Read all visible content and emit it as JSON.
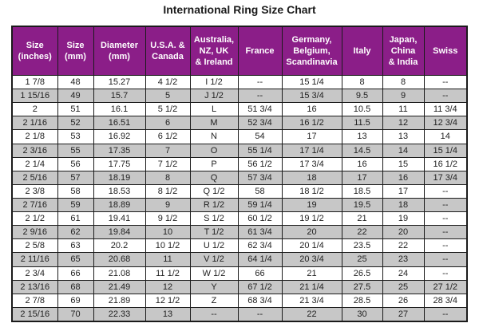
{
  "page": {
    "title": "International Ring Size Chart"
  },
  "colors": {
    "header_bg": "#8B1E88",
    "header_text": "#FFFFFF",
    "row_bg": "#FFFFFF",
    "row_alt_bg": "#C7C7C7",
    "border": "#1B1B1B",
    "cell_text": "#222222",
    "title_text": "#1A1A1A"
  },
  "chart_data": {
    "type": "table",
    "title": "International Ring Size Chart",
    "columns": [
      "Size\n(inches)",
      "Size\n(mm)",
      "Diameter\n(mm)",
      "U.S.A. &\nCanada",
      "Australia,\nNZ, UK\n& Ireland",
      "France",
      "Germany,\nBelgium,\nScandinavia",
      "Italy",
      "Japan,\nChina\n& India",
      "Swiss"
    ],
    "rows": [
      [
        "1 7/8",
        "48",
        "15.27",
        "4 1/2",
        "I 1/2",
        "--",
        "15 1/4",
        "8",
        "8",
        "--"
      ],
      [
        "1 15/16",
        "49",
        "15.7",
        "5",
        "J 1/2",
        "--",
        "15 3/4",
        "9.5",
        "9",
        "--"
      ],
      [
        "2",
        "51",
        "16.1",
        "5 1/2",
        "L",
        "51 3/4",
        "16",
        "10.5",
        "11",
        "11 3/4"
      ],
      [
        "2 1/16",
        "52",
        "16.51",
        "6",
        "M",
        "52 3/4",
        "16 1/2",
        "11.5",
        "12",
        "12 3/4"
      ],
      [
        "2 1/8",
        "53",
        "16.92",
        "6 1/2",
        "N",
        "54",
        "17",
        "13",
        "13",
        "14"
      ],
      [
        "2 3/16",
        "55",
        "17.35",
        "7",
        "O",
        "55 1/4",
        "17 1/4",
        "14.5",
        "14",
        "15 1/4"
      ],
      [
        "2 1/4",
        "56",
        "17.75",
        "7 1/2",
        "P",
        "56 1/2",
        "17 3/4",
        "16",
        "15",
        "16 1/2"
      ],
      [
        "2 5/16",
        "57",
        "18.19",
        "8",
        "Q",
        "57 3/4",
        "18",
        "17",
        "16",
        "17 3/4"
      ],
      [
        "2 3/8",
        "58",
        "18.53",
        "8 1/2",
        "Q 1/2",
        "58",
        "18 1/2",
        "18.5",
        "17",
        "--"
      ],
      [
        "2 7/16",
        "59",
        "18.89",
        "9",
        "R 1/2",
        "59 1/4",
        "19",
        "19.5",
        "18",
        "--"
      ],
      [
        "2 1/2",
        "61",
        "19.41",
        "9 1/2",
        "S 1/2",
        "60 1/2",
        "19 1/2",
        "21",
        "19",
        "--"
      ],
      [
        "2 9/16",
        "62",
        "19.84",
        "10",
        "T 1/2",
        "61 3/4",
        "20",
        "22",
        "20",
        "--"
      ],
      [
        "2 5/8",
        "63",
        "20.2",
        "10 1/2",
        "U 1/2",
        "62 3/4",
        "20 1/4",
        "23.5",
        "22",
        "--"
      ],
      [
        "2 11/16",
        "65",
        "20.68",
        "11",
        "V 1/2",
        "64 1/4",
        "20 3/4",
        "25",
        "23",
        "--"
      ],
      [
        "2 3/4",
        "66",
        "21.08",
        "11 1/2",
        "W 1/2",
        "66",
        "21",
        "26.5",
        "24",
        "--"
      ],
      [
        "2 13/16",
        "68",
        "21.49",
        "12",
        "Y",
        "67 1/2",
        "21 1/4",
        "27.5",
        "25",
        "27 1/2"
      ],
      [
        "2 7/8",
        "69",
        "21.89",
        "12 1/2",
        "Z",
        "68 3/4",
        "21 3/4",
        "28.5",
        "26",
        "28 3/4"
      ],
      [
        "2 15/16",
        "70",
        "22.33",
        "13",
        "--",
        "--",
        "22",
        "30",
        "27",
        "--"
      ]
    ]
  }
}
